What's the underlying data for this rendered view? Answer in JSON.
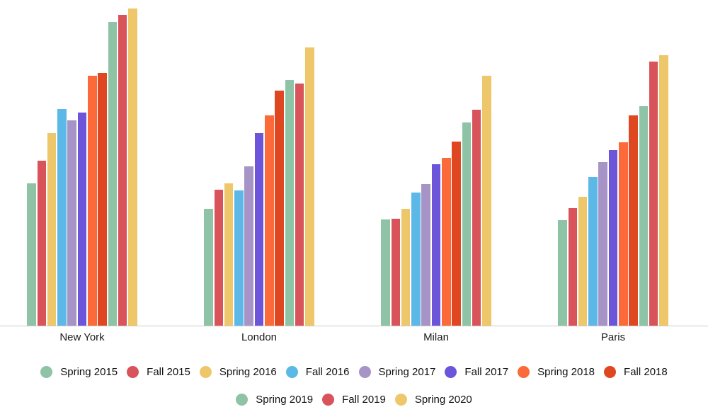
{
  "chart_data": {
    "type": "bar",
    "title": "",
    "xlabel": "",
    "ylabel": "",
    "grid": false,
    "y_axis_visible": false,
    "legend_position": "bottom",
    "axis_line_color": "#cccccc",
    "ylim": [
      0,
      460
    ],
    "units": "relative (no y-axis labels shown)",
    "categories": [
      "New York",
      "London",
      "Milan",
      "Paris"
    ],
    "series": [
      {
        "name": "Spring 2015",
        "color": "#8EC3A6",
        "values": [
          201,
          165,
          150,
          149
        ]
      },
      {
        "name": "Fall 2015",
        "color": "#D8535A",
        "values": [
          233,
          192,
          151,
          166
        ]
      },
      {
        "name": "Spring 2016",
        "color": "#EDC76A",
        "values": [
          272,
          201,
          165,
          182
        ]
      },
      {
        "name": "Fall 2016",
        "color": "#5CB8E6",
        "values": [
          306,
          191,
          188,
          210
        ]
      },
      {
        "name": "Spring 2017",
        "color": "#A794C7",
        "values": [
          290,
          225,
          200,
          231
        ]
      },
      {
        "name": "Fall 2017",
        "color": "#6C55D9",
        "values": [
          301,
          272,
          228,
          248
        ]
      },
      {
        "name": "Spring 2018",
        "color": "#FB6A38",
        "values": [
          353,
          297,
          237,
          259
        ]
      },
      {
        "name": "Fall 2018",
        "color": "#DE471F",
        "values": [
          357,
          332,
          260,
          297
        ]
      },
      {
        "name": "Spring 2019",
        "color": "#8EC3A6",
        "values": [
          429,
          347,
          287,
          310
        ]
      },
      {
        "name": "Fall 2019",
        "color": "#D8535A",
        "values": [
          439,
          342,
          305,
          373
        ]
      },
      {
        "name": "Spring 2020",
        "color": "#EDC76A",
        "values": [
          448,
          393,
          353,
          382
        ]
      }
    ]
  }
}
